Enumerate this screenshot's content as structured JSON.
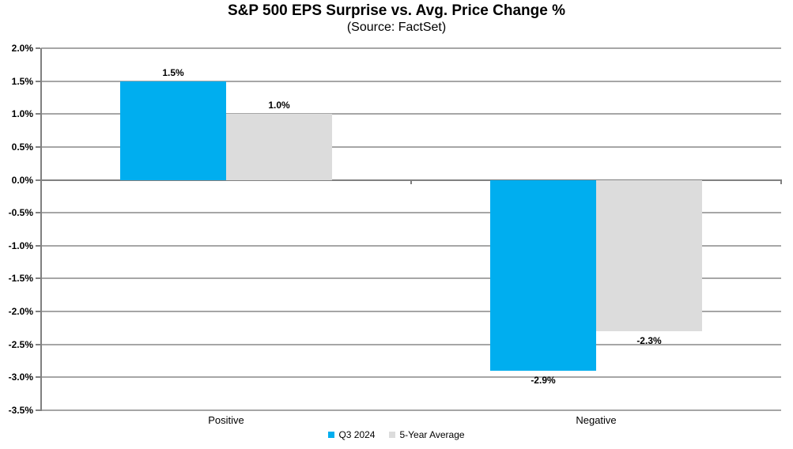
{
  "title": "S&P 500 EPS Surprise vs. Avg. Price Change %",
  "subtitle": "(Source: FactSet)",
  "colors": {
    "series_q3": "#00AEEF",
    "series_avg": "#DCDCDC",
    "gridline": "#A6A6A6",
    "axis": "#808080",
    "text": "#000000"
  },
  "chart_data": {
    "type": "bar",
    "title": "S&P 500 EPS Surprise vs. Avg. Price Change %",
    "subtitle": "(Source: FactSet)",
    "categories": [
      "Positive",
      "Negative"
    ],
    "series": [
      {
        "name": "Q3 2024",
        "color": "#00AEEF",
        "values": [
          1.5,
          -2.9
        ],
        "labels": [
          "1.5%",
          "-2.9%"
        ]
      },
      {
        "name": "5-Year Average",
        "color": "#DCDCDC",
        "values": [
          1.0,
          -2.3
        ],
        "labels": [
          "1.0%",
          "-2.3%"
        ]
      }
    ],
    "xlabel": "",
    "ylabel": "",
    "ylim": [
      -3.5,
      2.0
    ],
    "ytick_step": 0.5,
    "ytick_format": "percent_1dp",
    "ytick_labels": [
      "2.0%",
      "1.5%",
      "1.0%",
      "0.5%",
      "0.0%",
      "-0.5%",
      "-1.0%",
      "-1.5%",
      "-2.0%",
      "-2.5%",
      "-3.0%",
      "-3.5%"
    ],
    "grid": true,
    "legend_position": "bottom"
  }
}
